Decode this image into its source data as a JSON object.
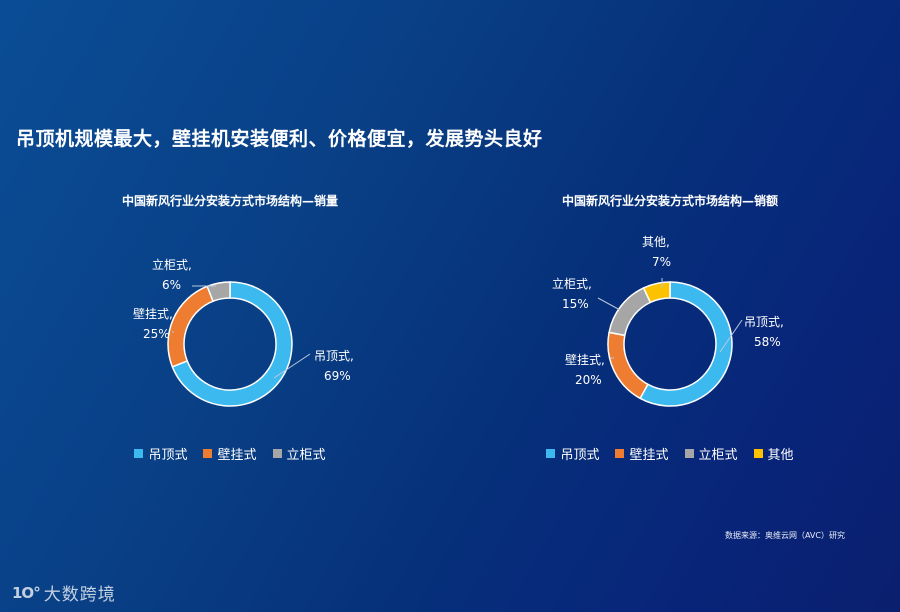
{
  "headline": "吊顶机规模最大，壁挂机安装便利、价格便宜，发展势头良好",
  "colors": {
    "ceiling": "#3cb9ef",
    "wall": "#ee7d31",
    "cabinet": "#a6a6a6",
    "other": "#fcc200",
    "leader": "#b9c8dc"
  },
  "chart_data": [
    {
      "type": "pie",
      "title": "中国新风行业分安装方式市场结构—销量",
      "categories": [
        "吊顶式",
        "壁挂式",
        "立柜式"
      ],
      "values": [
        69,
        25,
        6
      ],
      "data_labels": [
        {
          "name": "吊顶式,",
          "value": "69%"
        },
        {
          "name": "壁挂式,",
          "value": "25%"
        },
        {
          "name": "立柜式,",
          "value": "6%"
        }
      ],
      "legend": [
        "吊顶式",
        "壁挂式",
        "立柜式"
      ],
      "legend_position": "bottom",
      "donut": true
    },
    {
      "type": "pie",
      "title": "中国新风行业分安装方式市场结构—销额",
      "categories": [
        "吊顶式",
        "壁挂式",
        "立柜式",
        "其他"
      ],
      "values": [
        58,
        20,
        15,
        7
      ],
      "data_labels": [
        {
          "name": "吊顶式,",
          "value": "58%"
        },
        {
          "name": "壁挂式,",
          "value": "20%"
        },
        {
          "name": "立柜式,",
          "value": "15%"
        },
        {
          "name": "其他,",
          "value": "7%"
        }
      ],
      "legend": [
        "吊顶式",
        "壁挂式",
        "立柜式",
        "其他"
      ],
      "legend_position": "bottom",
      "donut": true
    }
  ],
  "source": "数据来源：奥维云网（AVC）研究",
  "watermark": {
    "mark": "1O°",
    "text": "大数跨境"
  }
}
